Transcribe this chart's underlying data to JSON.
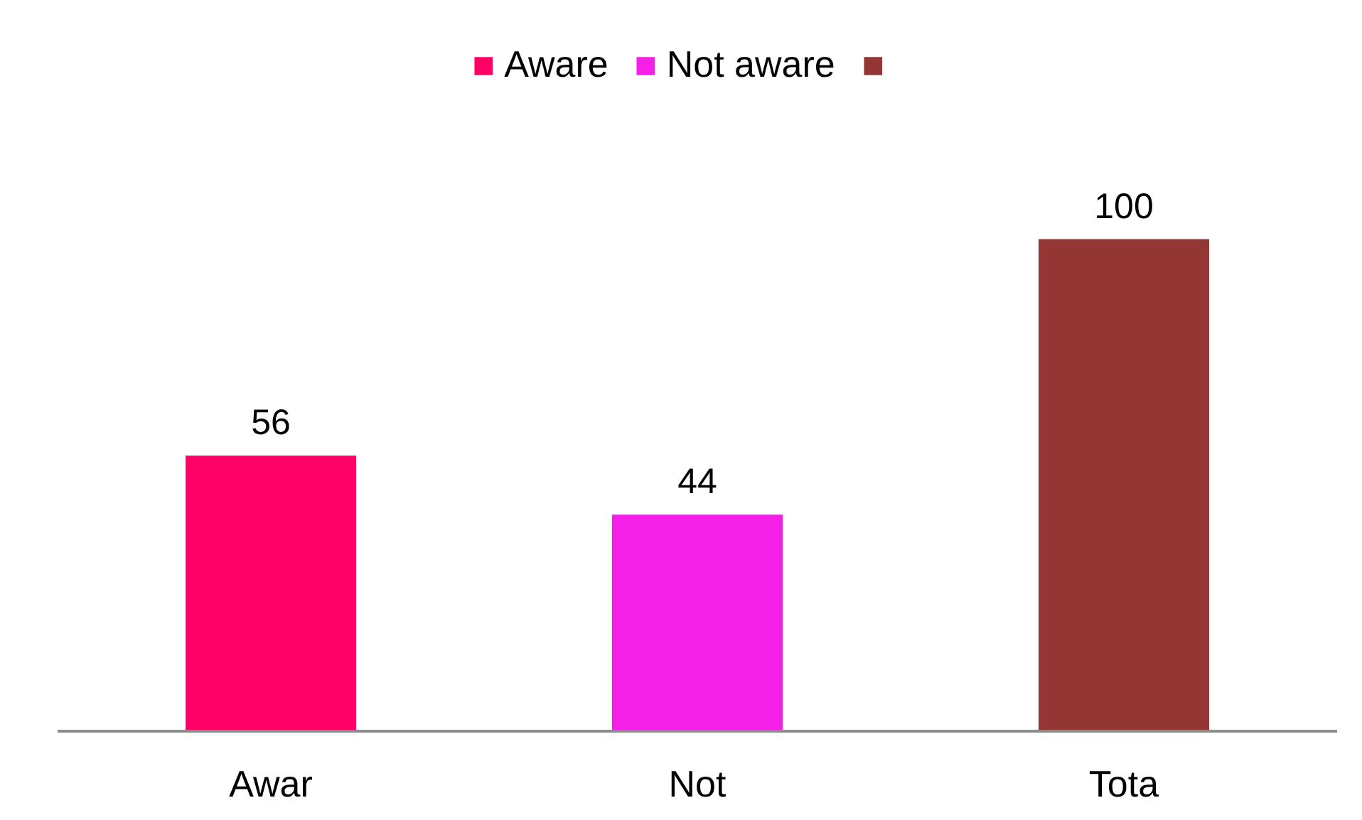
{
  "chart_data": {
    "type": "bar",
    "categories": [
      "Awar",
      "Not",
      "Tota"
    ],
    "series": [
      {
        "name": "Aware",
        "color": "#ff0066",
        "values": [
          56,
          null,
          null
        ]
      },
      {
        "name": "Not aware",
        "color": "#f520e8",
        "values": [
          null,
          44,
          null
        ]
      },
      {
        "color": "#943634",
        "values": [
          null,
          null,
          100
        ]
      }
    ],
    "data_labels": true,
    "legend": "top",
    "grid": false,
    "tick_labels": "x"
  }
}
